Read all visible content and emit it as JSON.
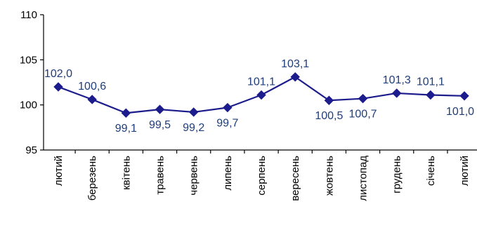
{
  "chart_data": {
    "type": "line",
    "categories": [
      "лютий",
      "березень",
      "квітень",
      "травень",
      "червень",
      "липень",
      "серпень",
      "вересень",
      "жовтень",
      "листопад",
      "грудень",
      "січень",
      "лютий"
    ],
    "series": [
      {
        "values": [
          102.0,
          100.6,
          99.1,
          99.5,
          99.2,
          99.7,
          101.1,
          103.1,
          100.5,
          100.7,
          101.3,
          101.1,
          101.0
        ],
        "data_labels": [
          "102,0",
          "100,6",
          "99,1",
          "99,5",
          "99,2",
          "99,7",
          "101,1",
          "103,1",
          "100,5",
          "100,7",
          "101,3",
          "101,1",
          "101,0"
        ]
      }
    ],
    "title": "",
    "xlabel": "",
    "ylabel": "",
    "ylim": [
      95,
      110
    ],
    "yticks": [
      95,
      100,
      105,
      110
    ],
    "ytick_labels": [
      "95",
      "100",
      "105",
      "110"
    ],
    "grid": false,
    "legend": "none",
    "marker": "diamond",
    "colors": {
      "line": "#1c1c8c",
      "marker": "#1c1c8c",
      "data_label": "#1f3d7a",
      "axis": "#000000"
    }
  }
}
